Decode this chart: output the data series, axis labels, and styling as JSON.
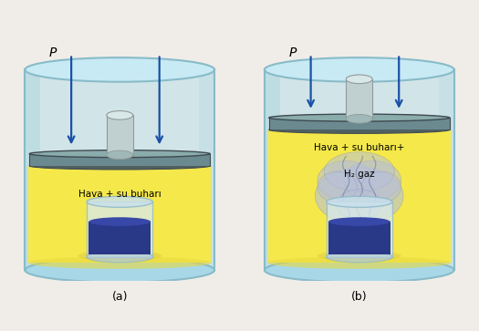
{
  "title_a": "(a)",
  "title_b": "(b)",
  "label_a": "Hava + su buharı",
  "label_b1": "Hava + su buharı+",
  "label_b2": "H₂ gaz",
  "pressure_label": "P",
  "bg_color": "#f0ede8",
  "cyl_fill": "#b8dfe8",
  "cyl_edge": "#88bbc8",
  "yellow_fill": "#f5e84a",
  "piston_fill": "#6a8a90",
  "piston_edge": "#404a50",
  "rod_fill": "#c0d0d0",
  "rod_edge": "#909a9a",
  "beaker_fill": "#d8eaf0",
  "beaker_edge": "#90b8c8",
  "liquid_fill": "#2a3888",
  "liquid_top": "#3a50a0",
  "arrow_color": "#1a50a8",
  "gas_color": "#b8c0d8",
  "gas_edge": "#8090b0",
  "label_color_a": "#000000",
  "label_color_b": "#000000",
  "caption_color": "#000000"
}
